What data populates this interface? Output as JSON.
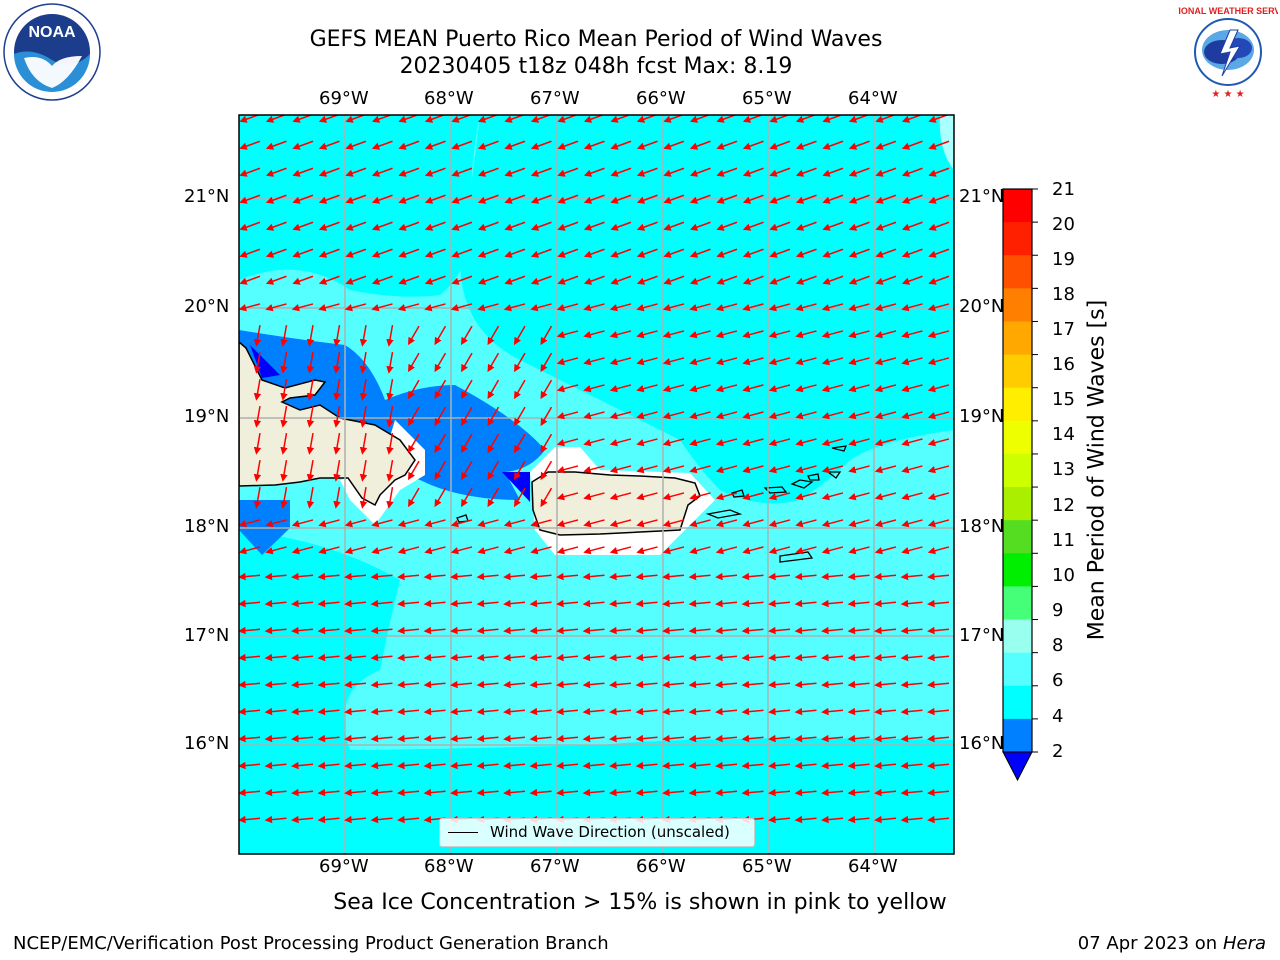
{
  "title_line1": "GEFS MEAN Puerto Rico Mean Period of Wind Waves",
  "title_line2": "20230405 t18z 048h fcst   Max: 8.19",
  "map": {
    "lon_ticks": [
      "69°W",
      "68°W",
      "67°W",
      "66°W",
      "65°W",
      "64°W"
    ],
    "lat_ticks": [
      "21°N",
      "20°N",
      "19°N",
      "18°N",
      "17°N",
      "16°N"
    ],
    "arrow_color": "#ff0000",
    "land_color": "#efefdc",
    "grid_color": "#b0b0b0",
    "legend_label": "Wind Wave Direction (unscaled)"
  },
  "colorbar": {
    "label": "Mean Period of Wind Waves [s]",
    "ticks": [
      "21",
      "20",
      "19",
      "18",
      "17",
      "16",
      "15",
      "14",
      "13",
      "12",
      "11",
      "10",
      "9",
      "8",
      "6",
      "4",
      "2"
    ],
    "colors": [
      "#ff0000",
      "#ff2000",
      "#ff5000",
      "#ff8000",
      "#ffa800",
      "#ffcc00",
      "#ffee00",
      "#eeff00",
      "#ccff00",
      "#aaee00",
      "#55dd22",
      "#00ee00",
      "#44ff77",
      "#99ffee",
      "#55ffff",
      "#00ffff",
      "#0080ff"
    ],
    "extend_color": "#0000ff"
  },
  "sea_ice_note": "Sea Ice Concentration > 15% is shown in pink to yellow",
  "footer": {
    "left": "NCEP/EMC/Verification Post Processing Product Generation Branch",
    "right_date": "07 Apr 2023 on ",
    "right_host": "Hera"
  },
  "logos": {
    "noaa_text": "NOAA",
    "nws_text": "NATIONAL WEATHER SERVICE"
  }
}
